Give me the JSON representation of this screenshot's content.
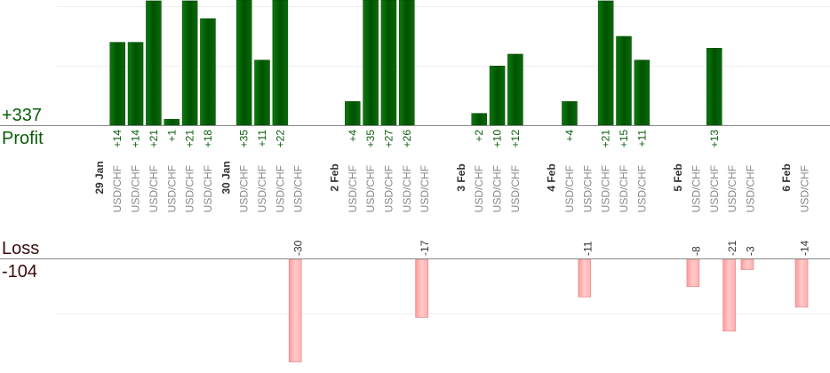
{
  "summary": {
    "profit_total": "+337",
    "profit_label": "Profit",
    "loss_label": "Loss",
    "loss_total": "-104"
  },
  "colors": {
    "profit_bar": "#0a6a0a",
    "loss_bar": "#ffb0b0",
    "profit_text": "#0b5d0b",
    "loss_text": "#333333",
    "grid": "#eeeeee",
    "axis": "#888888"
  },
  "chart_data": {
    "type": "bar",
    "title": "",
    "xlabel": "",
    "ylabel": "",
    "grid": true,
    "bars": [
      {
        "slot": 2,
        "label": "USD/CHF",
        "value": 14,
        "text": "+14"
      },
      {
        "slot": 3,
        "label": "USD/CHF",
        "value": 14,
        "text": "+14"
      },
      {
        "slot": 4,
        "label": "USD/CHF",
        "value": 21,
        "text": "+21"
      },
      {
        "slot": 5,
        "label": "USD/CHF",
        "value": 1,
        "text": "+1"
      },
      {
        "slot": 6,
        "label": "USD/CHF",
        "value": 21,
        "text": "+21"
      },
      {
        "slot": 7,
        "label": "USD/CHF",
        "value": 18,
        "text": "+18"
      },
      {
        "slot": 9,
        "label": "USD/CHF",
        "value": 35,
        "text": "+35"
      },
      {
        "slot": 10,
        "label": "USD/CHF",
        "value": 11,
        "text": "+11"
      },
      {
        "slot": 11,
        "label": "USD/CHF",
        "value": 22,
        "text": "+22"
      },
      {
        "slot": 12,
        "label": "USD/CHF",
        "value": -30,
        "text": "-30"
      },
      {
        "slot": 15,
        "label": "USD/CHF",
        "value": 4,
        "text": "+4"
      },
      {
        "slot": 16,
        "label": "USD/CHF",
        "value": 35,
        "text": "+35"
      },
      {
        "slot": 17,
        "label": "USD/CHF",
        "value": 27,
        "text": "+27"
      },
      {
        "slot": 18,
        "label": "USD/CHF",
        "value": 26,
        "text": "+26"
      },
      {
        "slot": 19,
        "label": "USD/CHF",
        "value": -17,
        "text": "-17"
      },
      {
        "slot": 22,
        "label": "USD/CHF",
        "value": 2,
        "text": "+2"
      },
      {
        "slot": 23,
        "label": "USD/CHF",
        "value": 10,
        "text": "+10"
      },
      {
        "slot": 24,
        "label": "USD/CHF",
        "value": 12,
        "text": "+12"
      },
      {
        "slot": 27,
        "label": "USD/CHF",
        "value": 4,
        "text": "+4"
      },
      {
        "slot": 28,
        "label": "USD/CHF",
        "value": -11,
        "text": "-11"
      },
      {
        "slot": 29,
        "label": "USD/CHF",
        "value": 21,
        "text": "+21"
      },
      {
        "slot": 30,
        "label": "USD/CHF",
        "value": 15,
        "text": "+15"
      },
      {
        "slot": 31,
        "label": "USD/CHF",
        "value": 11,
        "text": "+11"
      },
      {
        "slot": 34,
        "label": "USD/CHF",
        "value": -8,
        "text": "-8"
      },
      {
        "slot": 35,
        "label": "USD/CHF",
        "value": 13,
        "text": "+13"
      },
      {
        "slot": 36,
        "label": "USD/CHF",
        "value": -21,
        "text": "-21"
      },
      {
        "slot": 37,
        "label": "USD/CHF",
        "value": -3,
        "text": "-3"
      },
      {
        "slot": 40,
        "label": "USD/CHF",
        "value": -14,
        "text": "-14"
      }
    ],
    "date_labels": [
      {
        "slot": 1,
        "text": "29 Jan"
      },
      {
        "slot": 8,
        "text": "30 Jan"
      },
      {
        "slot": 14,
        "text": "2 Feb"
      },
      {
        "slot": 21,
        "text": "3 Feb"
      },
      {
        "slot": 26,
        "text": "4 Feb"
      },
      {
        "slot": 33,
        "text": "5 Feb"
      },
      {
        "slot": 39,
        "text": "6 Feb"
      }
    ]
  }
}
